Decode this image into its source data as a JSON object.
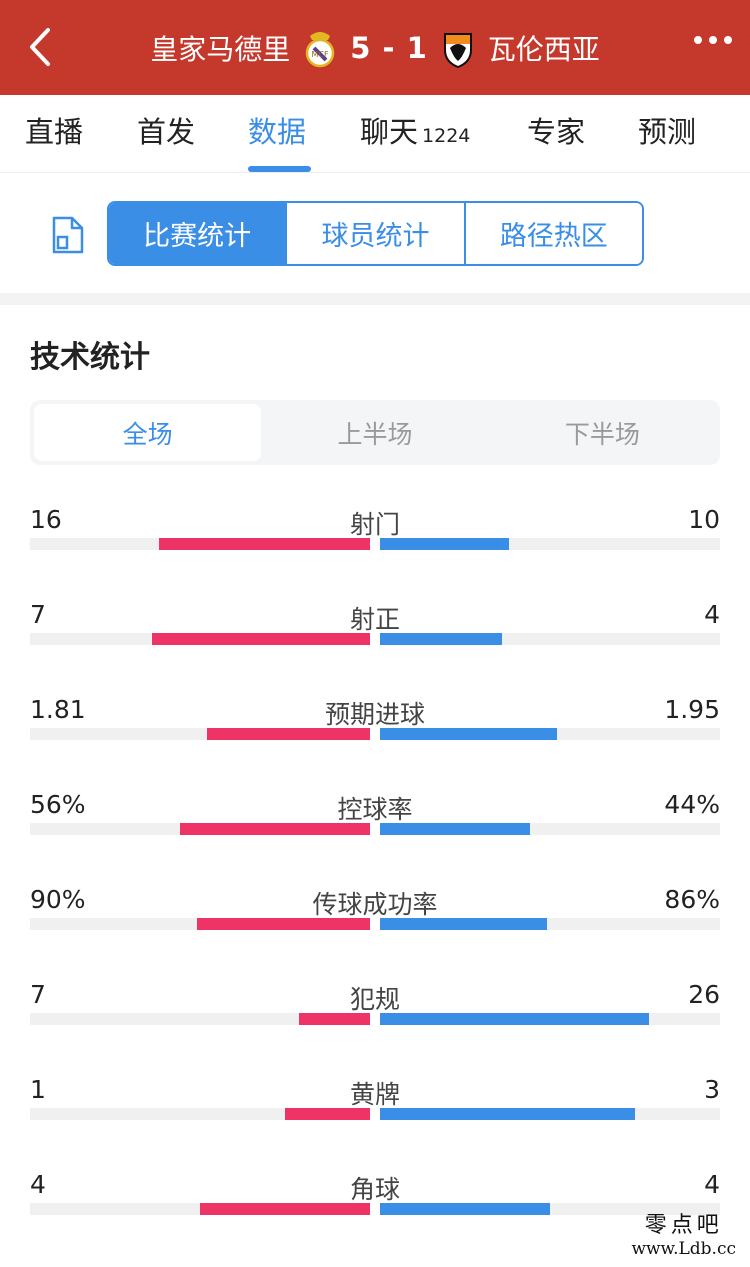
{
  "header": {
    "home_team": "皇家马德里",
    "score": "5 - 1",
    "away_team": "瓦伦西亚",
    "background_color": "#c4392c"
  },
  "nav_tabs": [
    {
      "label": "直播",
      "count": ""
    },
    {
      "label": "首发",
      "count": ""
    },
    {
      "label": "数据",
      "count": "",
      "active": true
    },
    {
      "label": "聊天",
      "count": "1224"
    },
    {
      "label": "专家",
      "count": ""
    },
    {
      "label": "预测",
      "count": ""
    }
  ],
  "segments": [
    "比赛统计",
    "球员统计",
    "路径热区"
  ],
  "section_title": "技术统计",
  "periods": [
    "全场",
    "上半场",
    "下半场"
  ],
  "colors": {
    "home": "#ee3466",
    "away": "#3a8ee6",
    "accent": "#3a8ee6"
  },
  "stats": [
    {
      "name": "射门",
      "home": "16",
      "away": "10",
      "home_ratio": 0.62,
      "away_ratio": 0.38
    },
    {
      "name": "射正",
      "home": "7",
      "away": "4",
      "home_ratio": 0.64,
      "away_ratio": 0.36
    },
    {
      "name": "预期进球",
      "home": "1.81",
      "away": "1.95",
      "home_ratio": 0.48,
      "away_ratio": 0.52
    },
    {
      "name": "控球率",
      "home": "56%",
      "away": "44%",
      "home_ratio": 0.56,
      "away_ratio": 0.44
    },
    {
      "name": "传球成功率",
      "home": "90%",
      "away": "86%",
      "home_ratio": 0.51,
      "away_ratio": 0.49
    },
    {
      "name": "犯规",
      "home": "7",
      "away": "26",
      "home_ratio": 0.21,
      "away_ratio": 0.79
    },
    {
      "name": "黄牌",
      "home": "1",
      "away": "3",
      "home_ratio": 0.25,
      "away_ratio": 0.75
    },
    {
      "name": "角球",
      "home": "4",
      "away": "4",
      "home_ratio": 0.5,
      "away_ratio": 0.5
    }
  ],
  "watermark": {
    "line1": "零点吧",
    "line2": "www.Ldb.cc"
  }
}
